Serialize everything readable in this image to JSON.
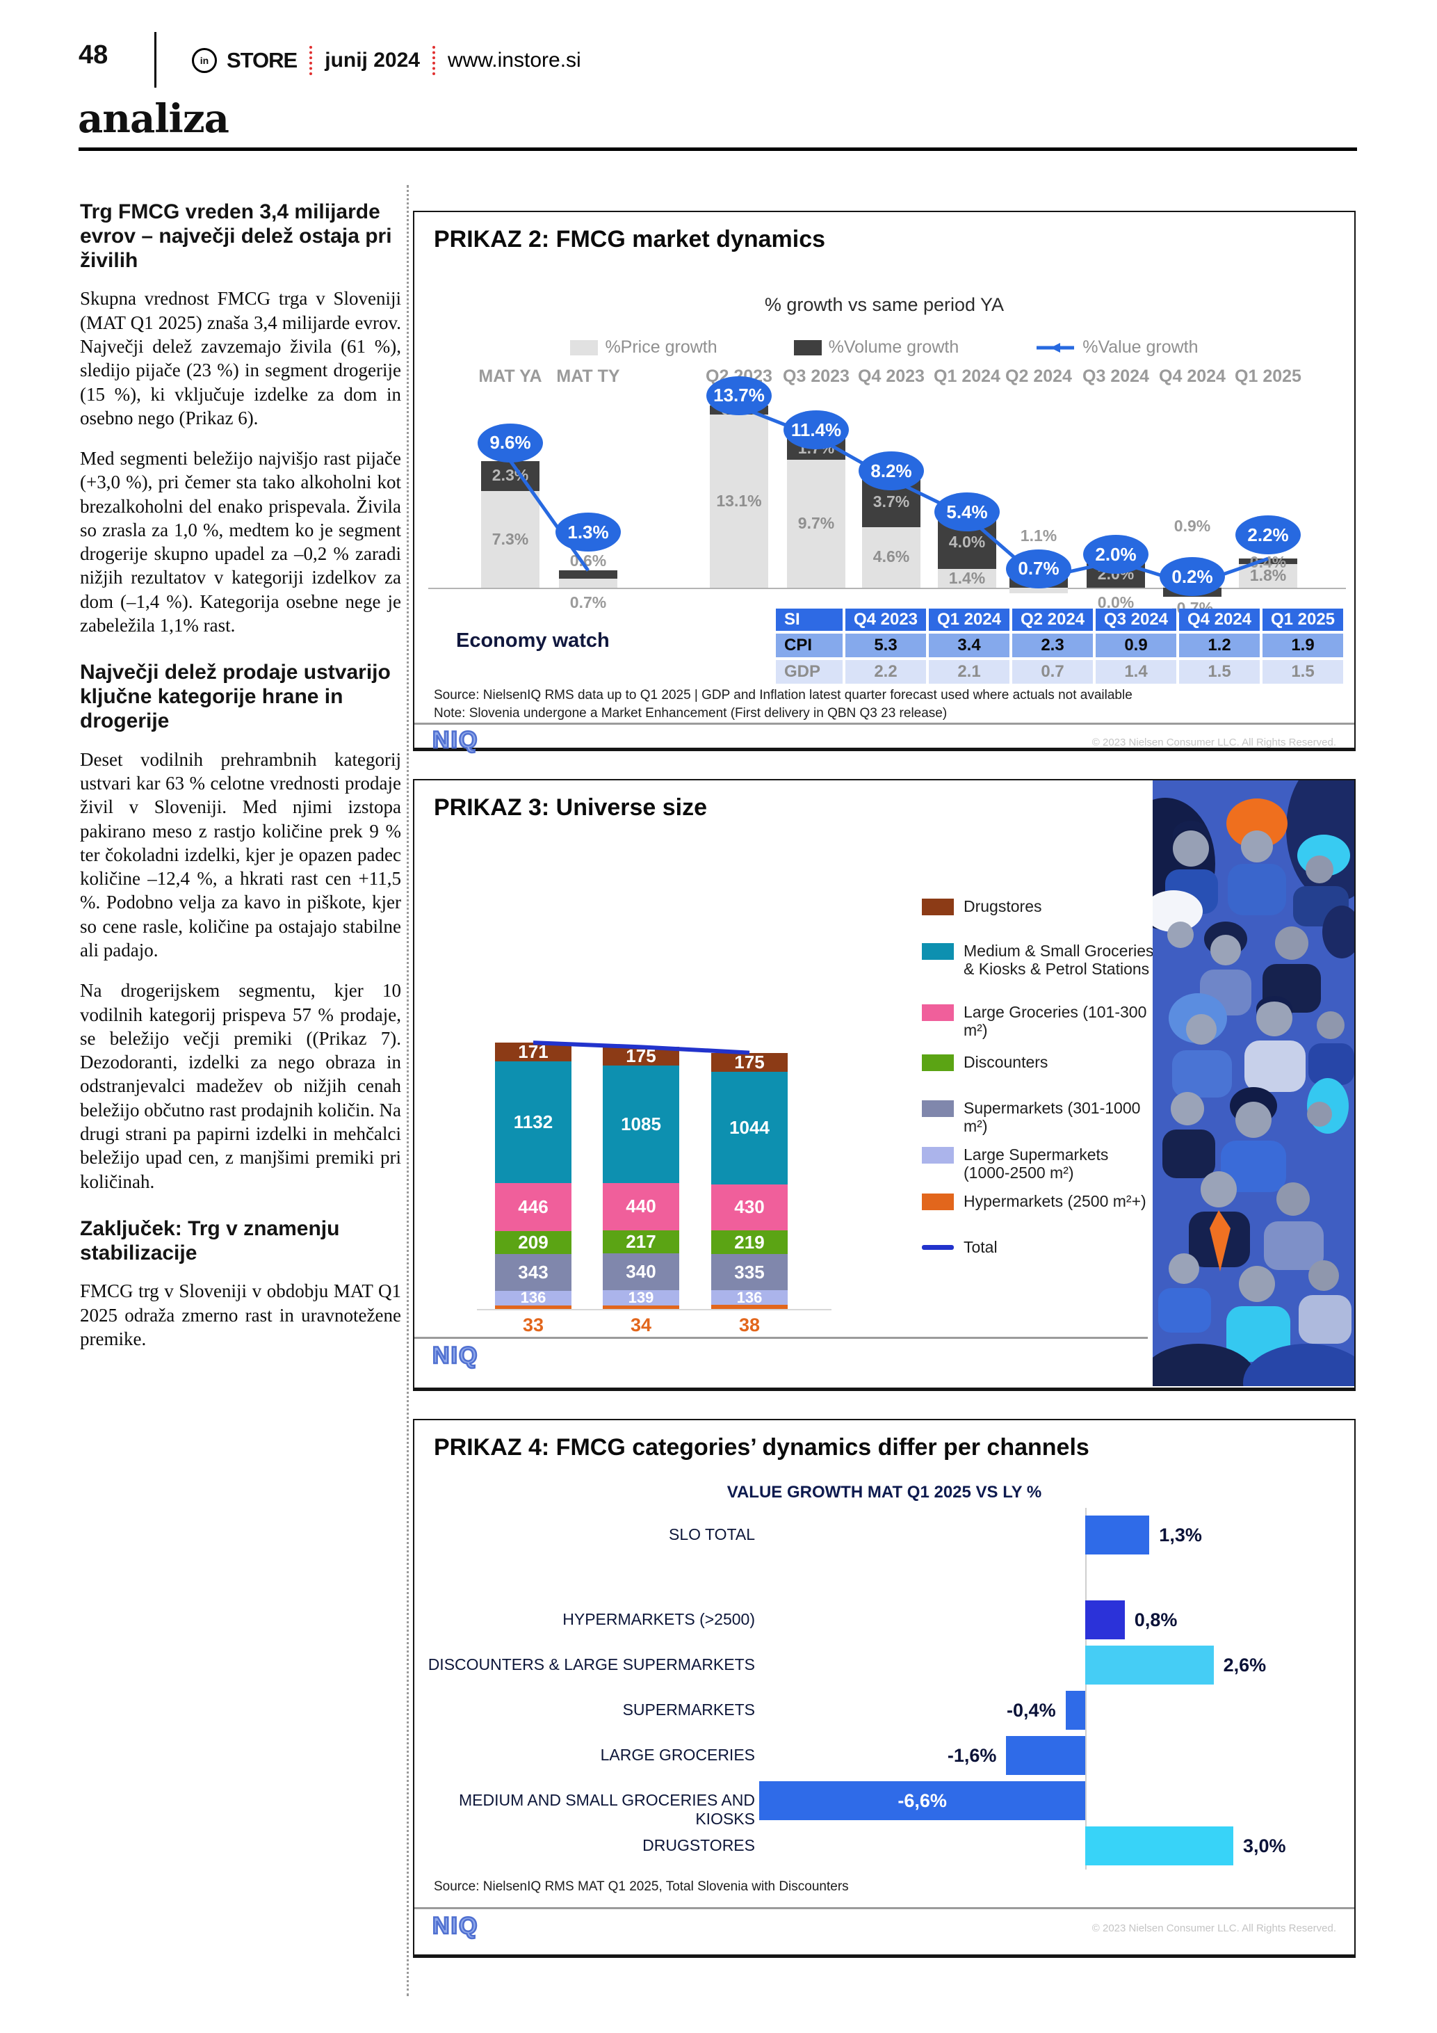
{
  "page": {
    "number": "48",
    "brand_prefix": "in",
    "brand_name": "STORE",
    "issue": "junij 2024",
    "website": "www.instore.si",
    "section": "analiza"
  },
  "article": {
    "heading1": "Trg FMCG vreden 3,4 milijarde evrov – največji delež ostaja pri živilih",
    "para1": "Skupna vrednost FMCG trga v Sloveniji (MAT Q1 2025) znaša 3,4 milijarde evrov. Največji delež zavzemajo živila (61 %), sledijo pijače (23 %) in segment drogerije (15 %), ki vključuje izdelke za dom in osebno nego (Prikaz 6).",
    "para2": "Med segmenti beležijo najvišjo rast pijače (+3,0 %), pri čemer sta tako alkoholni kot brezalkoholni del enako prispevala. Živila so zrasla za 1,0 %, medtem ko je segment drogerije skupno upadel za –0,2 % zaradi nižjih rezultatov v kategoriji izdelkov za dom (–1,4 %). Kategorija osebne nege je zabeležila 1,1% rast.",
    "heading2": "Največji delež prodaje ustvarijo ključne kategorije hrane in drogerije",
    "para3": "Deset vodilnih prehrambnih kategorij ustvari kar 63 % celotne vrednosti prodaje živil v Sloveniji. Med njimi izstopa pakirano meso z rastjo količine prek 9 % ter čokoladni izdelki, kjer je opazen padec količine –12,4 %, a hkrati rast cen +11,5 %. Podobno velja za kavo in piškote, kjer so cene rasle, količine pa ostajajo stabilne ali padajo.",
    "para4": "Na drogerijskem segmentu, kjer 10 vodilnih kategorij prispeva 57 % prodaje, se beležijo večji premiki ((Prikaz 7). Dezodoranti, izdelki za nego obraza in odstranjevalci madežev ob nižjih cenah beležijo občutno rast prodajnih količin. Na drugi strani pa papirni izdelki in mehčalci beležijo upad cen, z manjšimi premiki pri količinah.",
    "heading3": "Zaključek: Trg v znamenju stabilizacije",
    "para5": "FMCG trg v Sloveniji v obdobju MAT Q1 2025 odraža zmerno rast in uravnotežene premike."
  },
  "prikaz2": {
    "title": "PRIKAZ 2: FMCG market dynamics",
    "subtitle": "% growth vs same period YA",
    "legend": {
      "price": "%Price growth",
      "volume": "%Volume growth",
      "value": "%Value growth"
    },
    "colors": {
      "price": "#e1e1e1",
      "volume": "#3f3f3f",
      "value": "#2769e0"
    },
    "periods": [
      {
        "label": "MAT YA",
        "price": 7.3,
        "volume": 2.3,
        "value": 9.6,
        "price_label": "7.3%",
        "volume_label": "2.3%",
        "value_label": "9.6%",
        "price_pos": "in",
        "volume_pos": "in"
      },
      {
        "label": "MAT TY",
        "price": 0.7,
        "volume": 0.6,
        "value": 1.3,
        "price_label": "0.7%",
        "volume_label": "0.6%",
        "value_label": "1.3%",
        "price_pos": -8,
        "volume_pos": 52
      },
      {
        "label": "Q2 2023",
        "price": 13.1,
        "volume": 0.7,
        "value": 13.7,
        "price_label": "13.1%",
        "volume_label": "0.7%",
        "value_label": "13.7%",
        "price_pos": "in",
        "volume_pos": "in"
      },
      {
        "label": "Q3 2023",
        "price": 9.7,
        "volume": 1.7,
        "value": 11.4,
        "price_label": "9.7%",
        "volume_label": "1.7%",
        "value_label": "11.4%",
        "price_pos": "in",
        "volume_pos": "in"
      },
      {
        "label": "Q4 2023",
        "price": 4.6,
        "volume": 3.7,
        "value": 8.2,
        "price_label": "4.6%",
        "volume_label": "3.7%",
        "value_label": "8.2%",
        "price_pos": "in",
        "volume_pos": "in"
      },
      {
        "label": "Q1 2024",
        "price": 1.4,
        "volume": 4.0,
        "value": 5.4,
        "price_label": "1.4%",
        "volume_label": "4.0%",
        "value_label": "5.4%",
        "price_pos": "in",
        "volume_pos": "in"
      },
      {
        "label": "Q2 2024",
        "price": -0.4,
        "volume": 1.1,
        "value": 0.7,
        "price_label": "-0.4%",
        "volume_label": "1.1%",
        "value_label": "0.7%",
        "price_pos": -30,
        "volume_pos": 88
      },
      {
        "label": "Q3 2024",
        "price": 0.0,
        "volume": 2.0,
        "value": 2.0,
        "price_label": "0.0%",
        "volume_label": "2.0%",
        "value_label": "2.0%",
        "price_pos": -8,
        "volume_pos": "in"
      },
      {
        "label": "Q4 2024",
        "price": 0.9,
        "volume": -0.7,
        "value": 0.2,
        "price_label": "0.9%",
        "volume_label": "-0.7%",
        "value_label": "0.2%",
        "price_pos": 102,
        "volume_pos": -16
      },
      {
        "label": "Q1 2025",
        "price": 1.8,
        "volume": 0.4,
        "value": 2.2,
        "price_label": "1.8%",
        "volume_label": "0.4%",
        "value_label": "2.2%",
        "price_pos": "in",
        "volume_pos": 50
      }
    ],
    "economy": {
      "label": "Economy watch",
      "header": [
        "SI",
        "Q4 2023",
        "Q1 2024",
        "Q2 2024",
        "Q3 2024",
        "Q4 2024",
        "Q1 2025"
      ],
      "rows": [
        {
          "label": "CPI",
          "values": [
            "5.3",
            "3.4",
            "2.3",
            "0.9",
            "1.2",
            "1.9"
          ]
        },
        {
          "label": "GDP",
          "values": [
            "2.2",
            "2.1",
            "0.7",
            "1.4",
            "1.5",
            "1.5"
          ]
        }
      ]
    },
    "source": "Source: NielsenIQ RMS data up to Q1 2025 |  GDP and Inflation  latest quarter forecast used where actuals not available",
    "note": "Note: Slovenia undergone a Market Enhancement (First delivery in QBN Q3 23 release)",
    "logo": "NIQ",
    "copyright": "© 2023 Nielsen Consumer LLC. All Rights Reserved."
  },
  "prikaz3": {
    "title": "PRIKAZ 3: Universe size",
    "years": [
      "2023",
      "2024",
      "2025"
    ],
    "segments": [
      {
        "name": "Hypermarkets (2500 m²+)",
        "color": "#e2661c",
        "values": [
          33,
          34,
          38
        ],
        "label_below": true
      },
      {
        "name": "Large Supermarkets (1000-2500 m²)",
        "color": "#abb4eb",
        "values": [
          136,
          139,
          136
        ]
      },
      {
        "name": "Supermarkets (301-1000 m²)",
        "color": "#8087ac",
        "values": [
          343,
          340,
          335
        ]
      },
      {
        "name": "Discounters",
        "color": "#5ba414",
        "values": [
          209,
          217,
          219
        ]
      },
      {
        "name": "Large Groceries (101-300 m²)",
        "color": "#f05f9b",
        "values": [
          446,
          440,
          430
        ]
      },
      {
        "name": "Medium & Small Groceries & Kiosks & Petrol Stations",
        "color": "#0d90b0",
        "values": [
          1132,
          1085,
          1044
        ]
      },
      {
        "name": "Drugstores",
        "color": "#8c3b16",
        "values": [
          171,
          175,
          175
        ]
      }
    ],
    "legend": [
      {
        "label": "Drugstores",
        "color": "#8c3b16",
        "type": "box"
      },
      {
        "label": "Medium & Small Groceries & Kiosks & Petrol Stations",
        "color": "#0d90b0",
        "type": "box"
      },
      {
        "label": "Large Groceries (101-300 m²)",
        "color": "#f05f9b",
        "type": "box"
      },
      {
        "label": "Discounters",
        "color": "#5ba414",
        "type": "box"
      },
      {
        "label": "Supermarkets (301-1000 m²)",
        "color": "#8087ac",
        "type": "box"
      },
      {
        "label": "Large Supermarkets (1000-2500 m²)",
        "color": "#abb4eb",
        "type": "box"
      },
      {
        "label": "Hypermarkets (2500 m²+)",
        "color": "#e2661c",
        "type": "box"
      },
      {
        "label": "Total",
        "color": "#2233cc",
        "type": "line"
      }
    ],
    "logo": "NIQ"
  },
  "prikaz4": {
    "title": "PRIKAZ 4: FMCG categories’ dynamics differ per channels",
    "subtitle": "VALUE GROWTH MAT Q1 2025 VS LY %",
    "rows": [
      {
        "label": "SLO TOTAL",
        "value": 1.3,
        "value_label": "1,3%",
        "color": "#2f6be8"
      },
      {
        "label": "HYPERMARKETS (>2500)",
        "value": 0.8,
        "value_label": "0,8%",
        "color": "#2b32d9"
      },
      {
        "label": "DISCOUNTERS & LARGE SUPERMARKETS",
        "value": 2.6,
        "value_label": "2,6%",
        "color": "#45cdf5"
      },
      {
        "label": "SUPERMARKETS",
        "value": -0.4,
        "value_label": "-0,4%",
        "color": "#2f6be8"
      },
      {
        "label": "LARGE GROCERIES",
        "value": -1.6,
        "value_label": "-1,6%",
        "color": "#2f6be8"
      },
      {
        "label": "MEDIUM AND SMALL GROCERIES AND KIOSKS",
        "value": -6.6,
        "value_label": "-6,6%",
        "color": "#2f6be8",
        "label_inside": true
      },
      {
        "label": "DRUGSTORES",
        "value": 3.0,
        "value_label": "3,0%",
        "color": "#38d3f8"
      }
    ],
    "source": "Source: NielsenIQ RMS MAT Q1 2025, Total Slovenia with Discounters",
    "logo": "NIQ",
    "copyright": "© 2023 Nielsen Consumer LLC. All Rights Reserved."
  },
  "chart_data": [
    {
      "type": "bar",
      "title": "PRIKAZ 2: FMCG market dynamics",
      "subtitle": "% growth vs same period YA",
      "categories": [
        "MAT YA",
        "MAT TY",
        "Q2 2023",
        "Q3 2023",
        "Q4 2023",
        "Q1 2024",
        "Q2 2024",
        "Q3 2024",
        "Q4 2024",
        "Q1 2025"
      ],
      "series": [
        {
          "name": "%Price growth",
          "type": "bar",
          "values": [
            7.3,
            0.7,
            13.1,
            9.7,
            4.6,
            1.4,
            -0.4,
            0.0,
            0.9,
            1.8
          ]
        },
        {
          "name": "%Volume growth",
          "type": "bar",
          "values": [
            2.3,
            0.6,
            0.7,
            1.7,
            3.7,
            4.0,
            1.1,
            2.0,
            -0.7,
            0.4
          ]
        },
        {
          "name": "%Value growth",
          "type": "line",
          "values": [
            9.6,
            1.3,
            13.7,
            11.4,
            8.2,
            5.4,
            0.7,
            2.0,
            0.2,
            2.2
          ]
        }
      ],
      "ylim": [
        -1.5,
        14.5
      ],
      "grid": false,
      "legend_position": "top",
      "table": {
        "header": [
          "SI",
          "Q4 2023",
          "Q1 2024",
          "Q2 2024",
          "Q3 2024",
          "Q4 2024",
          "Q1 2025"
        ],
        "rows": [
          [
            "CPI",
            5.3,
            3.4,
            2.3,
            0.9,
            1.2,
            1.9
          ],
          [
            "GDP",
            2.2,
            2.1,
            0.7,
            1.4,
            1.5,
            1.5
          ]
        ]
      }
    },
    {
      "type": "bar",
      "stacked": true,
      "title": "PRIKAZ 3: Universe size",
      "categories": [
        "2023",
        "2024",
        "2025"
      ],
      "series": [
        {
          "name": "Drugstores",
          "values": [
            171,
            175,
            175
          ]
        },
        {
          "name": "Medium & Small Groceries & Kiosks & Petrol Stations",
          "values": [
            1132,
            1085,
            1044
          ]
        },
        {
          "name": "Large Groceries (101-300 m²)",
          "values": [
            446,
            440,
            430
          ]
        },
        {
          "name": "Discounters",
          "values": [
            209,
            217,
            219
          ]
        },
        {
          "name": "Supermarkets (301-1000 m²)",
          "values": [
            343,
            340,
            335
          ]
        },
        {
          "name": "Large Supermarkets (1000-2500 m²)",
          "values": [
            136,
            139,
            136
          ]
        },
        {
          "name": "Hypermarkets (2500 m²+)",
          "values": [
            33,
            34,
            38
          ]
        }
      ],
      "totals": [
        2470,
        2430,
        2377
      ],
      "legend_position": "right"
    },
    {
      "type": "bar",
      "orientation": "horizontal",
      "title": "PRIKAZ 4: FMCG categories’ dynamics differ per channels",
      "subtitle": "VALUE GROWTH MAT Q1 2025 VS LY %",
      "categories": [
        "SLO TOTAL",
        "HYPERMARKETS (>2500)",
        "DISCOUNTERS & LARGE SUPERMARKETS",
        "SUPERMARKETS",
        "LARGE GROCERIES",
        "MEDIUM AND SMALL GROCERIES AND KIOSKS",
        "DRUGSTORES"
      ],
      "values": [
        1.3,
        0.8,
        2.6,
        -0.4,
        -1.6,
        -6.6,
        3.0
      ],
      "xlabel": "",
      "ylabel": ""
    }
  ]
}
